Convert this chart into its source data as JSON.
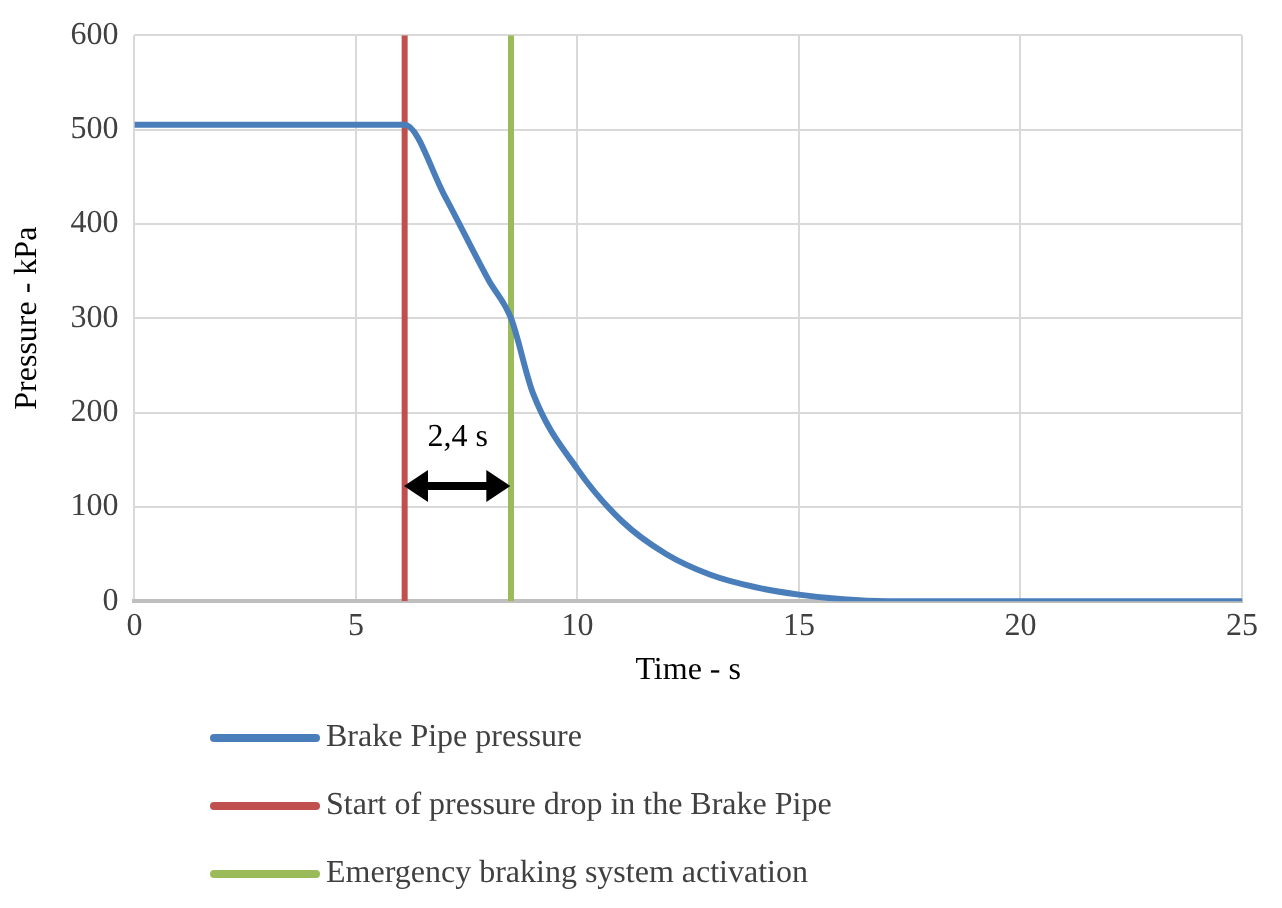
{
  "chart_data": {
    "type": "line",
    "xlabel": "Time - s",
    "ylabel": "Pressure - kPa",
    "xlim": [
      0,
      25
    ],
    "xticks": [
      0,
      5,
      10,
      15,
      20,
      25
    ],
    "ylim": [
      0,
      600
    ],
    "yticks": [
      0,
      100,
      200,
      300,
      400,
      500,
      600
    ],
    "grid": true,
    "legend": "bottom",
    "marker": "none",
    "line_style": "solid",
    "series": [
      {
        "name": "Brake Pipe pressure",
        "color": "#4a7ebb",
        "x": [
          0,
          6.1,
          7,
          8,
          8.5,
          9,
          10,
          11,
          12,
          13,
          14,
          15,
          16,
          17,
          20,
          25
        ],
        "values": [
          505,
          505,
          430,
          340,
          300,
          220,
          140,
          85,
          50,
          28,
          15,
          7,
          2,
          0,
          0,
          0
        ]
      },
      {
        "name": "Start of pressure drop in the Brake Pipe",
        "color": "#c0504d",
        "x": [
          6.1,
          6.1
        ],
        "values": [
          0,
          600
        ]
      },
      {
        "name": "Emergency braking system activation",
        "color": "#9bbb59",
        "x": [
          8.5,
          8.5
        ],
        "values": [
          0,
          600
        ]
      }
    ],
    "annotations": [
      "2,4 s"
    ]
  }
}
